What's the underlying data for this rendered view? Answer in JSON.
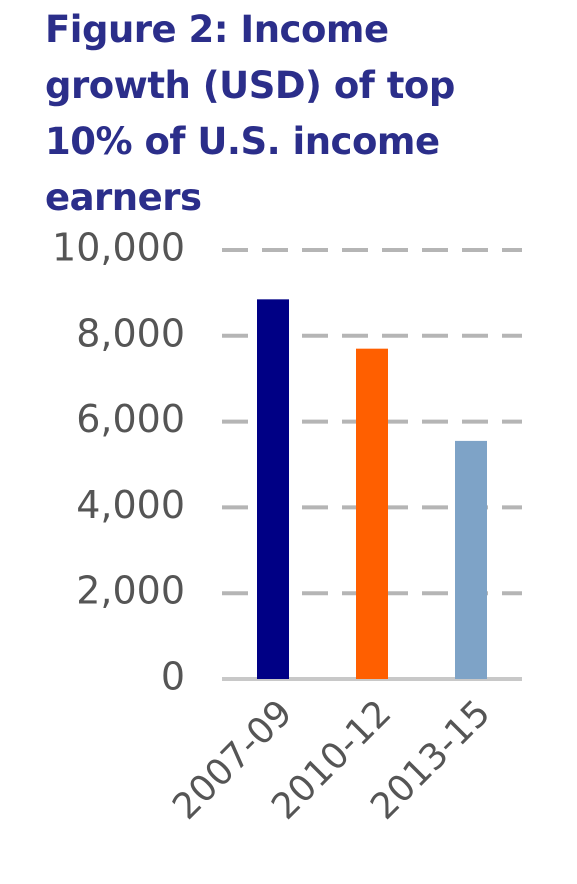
{
  "chart_data": {
    "type": "bar",
    "title": "Figure 2: Income growth (USD) of top 10% of U.S. income earners",
    "categories": [
      "2007-09",
      "2010-12",
      "2013-15"
    ],
    "values": [
      8850,
      7700,
      5550
    ],
    "colors": [
      "#000085",
      "#ff5f00",
      "#7ea3c7"
    ],
    "ylim": [
      0,
      10000
    ],
    "yticks": [
      0,
      {
        "value": 2000,
        "label": "2,000"
      },
      {
        "value": 4000,
        "label": "4,000"
      },
      {
        "value": 6000,
        "label": "6,000"
      },
      {
        "value": 8000,
        "label": "8,000"
      },
      {
        "value": 10000,
        "label": "10,000"
      }
    ],
    "grid": true
  }
}
